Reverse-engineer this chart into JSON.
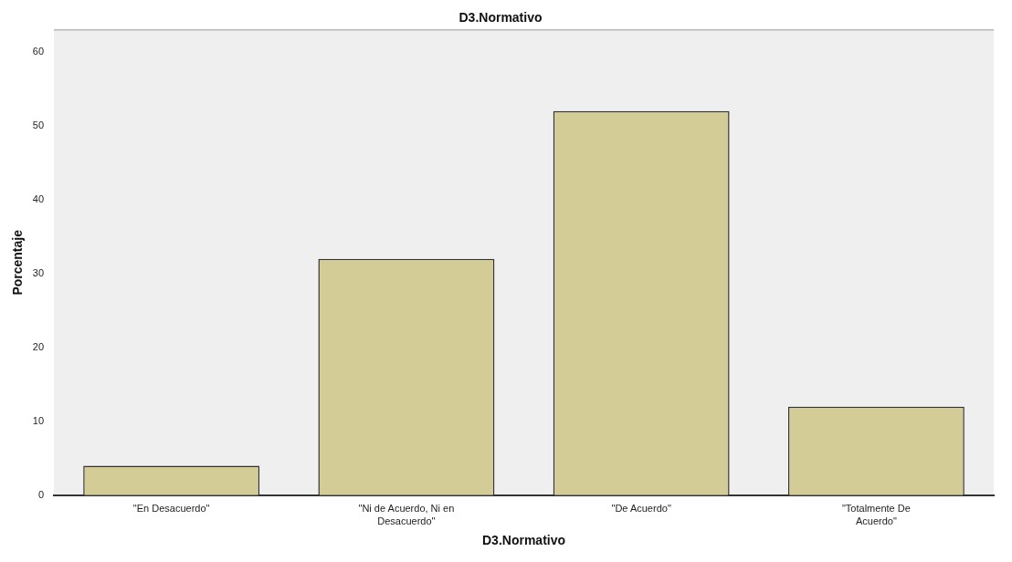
{
  "chart_data": {
    "type": "bar",
    "title": "D3.Normativo",
    "xlabel": "D3.Normativo",
    "ylabel": "Porcentaje",
    "categories": [
      "\"En Desacuerdo\"",
      "\"Ni de Acuerdo, Ni en Desacuerdo\"",
      "\"De Acuerdo\"",
      "\"Totalmente De Acuerdo\""
    ],
    "values": [
      4,
      32,
      52,
      12
    ],
    "color": "#d4cc97",
    "ylim": [
      0,
      63
    ],
    "yticks": [
      0,
      10,
      20,
      30,
      40,
      50,
      60
    ],
    "grid": false,
    "legend": false
  }
}
